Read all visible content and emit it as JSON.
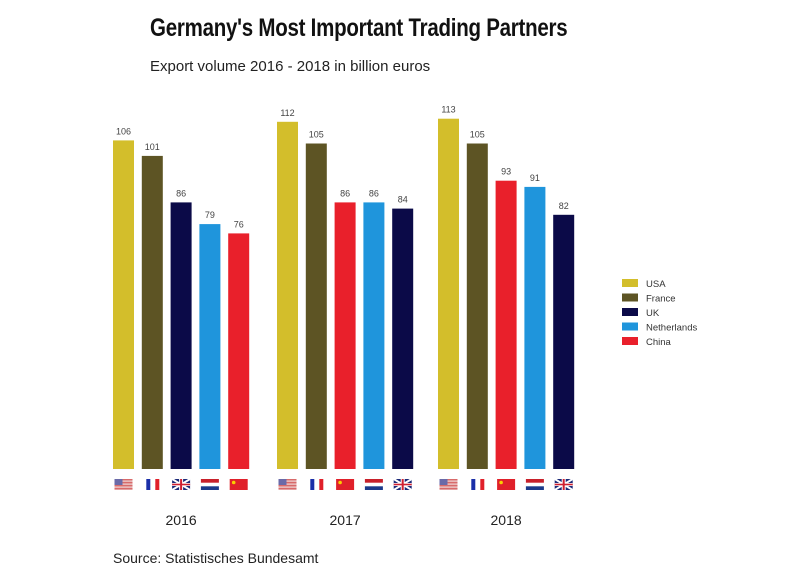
{
  "chart_data": {
    "type": "bar",
    "title": "Germany's Most Important Trading Partners",
    "subtitle": "Export volume 2016 - 2018 in billion euros",
    "source": "Source: Statistisches Bundesamt",
    "legend_position": "right",
    "grid": false,
    "ylim": [
      0,
      113
    ],
    "colors": {
      "USA": "#d3be2b",
      "France": "#5d5424",
      "UK": "#0b0a48",
      "Netherlands": "#1f95dc",
      "China": "#e9202b"
    },
    "legend": [
      "USA",
      "France",
      "UK",
      "Netherlands",
      "China"
    ],
    "groups": [
      {
        "year": "2016",
        "bars": [
          {
            "country": "USA",
            "value": 106
          },
          {
            "country": "France",
            "value": 101
          },
          {
            "country": "UK",
            "value": 86
          },
          {
            "country": "Netherlands",
            "value": 79
          },
          {
            "country": "China",
            "value": 76
          }
        ]
      },
      {
        "year": "2017",
        "bars": [
          {
            "country": "USA",
            "value": 112
          },
          {
            "country": "France",
            "value": 105
          },
          {
            "country": "China",
            "value": 86
          },
          {
            "country": "Netherlands",
            "value": 86
          },
          {
            "country": "UK",
            "value": 84
          }
        ]
      },
      {
        "year": "2018",
        "bars": [
          {
            "country": "USA",
            "value": 113
          },
          {
            "country": "France",
            "value": 105
          },
          {
            "country": "China",
            "value": 93
          },
          {
            "country": "Netherlands",
            "value": 91
          },
          {
            "country": "UK",
            "value": 82
          }
        ]
      }
    ]
  }
}
